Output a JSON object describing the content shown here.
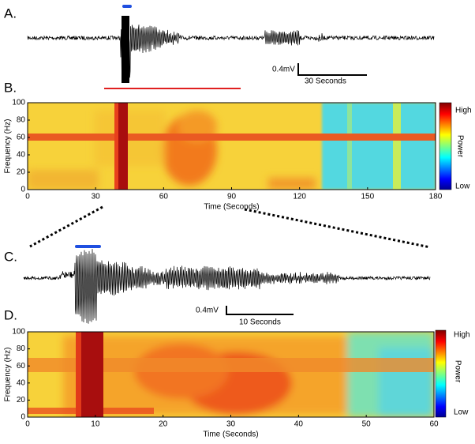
{
  "panels": [
    {
      "label": "A.",
      "scale_bar": {
        "amplitude": "0.4mV",
        "time": "30 Seconds"
      }
    },
    {
      "label": "B.",
      "type": "heatmap",
      "ylabel": "Frequency (Hz)",
      "xlabel": "Time (Seconds)",
      "xlim": [
        0,
        180
      ],
      "xticks": [
        0,
        30,
        60,
        90,
        120,
        150,
        180
      ],
      "ylim": [
        0,
        100
      ],
      "yticks": [
        0,
        20,
        40,
        60,
        80,
        100
      ],
      "colorbar": {
        "title": "Power",
        "high": "High",
        "low": "Low"
      }
    },
    {
      "label": "C.",
      "scale_bar": {
        "amplitude": "0.4mV",
        "time": "10 Seconds"
      }
    },
    {
      "label": "D.",
      "type": "heatmap",
      "ylabel": "Frequency (Hz)",
      "xlabel": "Time (Seconds)",
      "xlim": [
        0,
        60
      ],
      "xticks": [
        0,
        10,
        20,
        30,
        40,
        50,
        60
      ],
      "ylim": [
        0,
        100
      ],
      "yticks": [
        0,
        20,
        40,
        60,
        80,
        100
      ],
      "colorbar": {
        "title": "Power",
        "high": "High",
        "low": "Low"
      }
    }
  ]
}
